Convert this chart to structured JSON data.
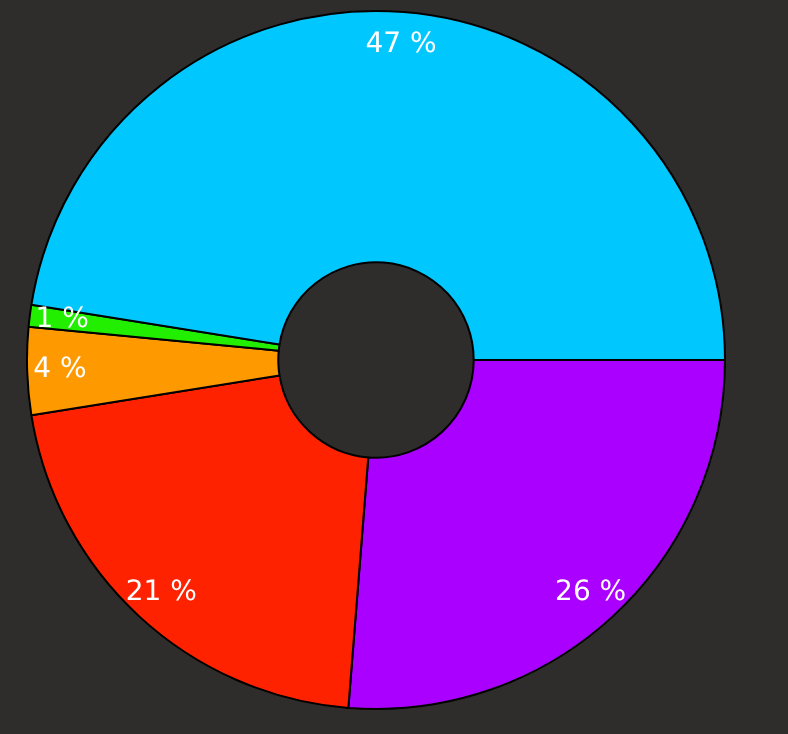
{
  "chart_data": {
    "type": "donut",
    "categories": [
      null,
      null,
      null,
      null,
      null
    ],
    "values": [
      26,
      21,
      4,
      1,
      47
    ],
    "colors": [
      "#aa00ff",
      "#ff2200",
      "#ff9900",
      "#22ee00",
      "#00c8ff"
    ],
    "value_labels": [
      "26 %",
      "21 %",
      "4 %",
      "1 %",
      "47 %"
    ],
    "legend": false
  }
}
